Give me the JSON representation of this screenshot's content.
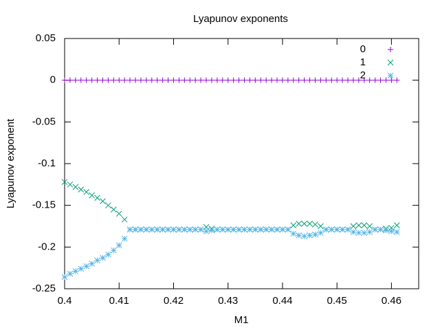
{
  "chart_data": {
    "type": "scatter",
    "title": "Lyapunov exponents",
    "x_label": "M1",
    "y_label": "Lyapunov exponent",
    "x": [
      0.4,
      0.401,
      0.402,
      0.403,
      0.404,
      0.405,
      0.406,
      0.407,
      0.408,
      0.409,
      0.41,
      0.411,
      0.412,
      0.413,
      0.414,
      0.415,
      0.416,
      0.417,
      0.418,
      0.419,
      0.42,
      0.421,
      0.422,
      0.423,
      0.424,
      0.425,
      0.426,
      0.427,
      0.428,
      0.429,
      0.43,
      0.431,
      0.432,
      0.433,
      0.434,
      0.435,
      0.436,
      0.437,
      0.438,
      0.439,
      0.44,
      0.441,
      0.442,
      0.443,
      0.444,
      0.445,
      0.446,
      0.447,
      0.448,
      0.449,
      0.45,
      0.451,
      0.452,
      0.453,
      0.454,
      0.455,
      0.456,
      0.457,
      0.458,
      0.459,
      0.46,
      0.461
    ],
    "series": [
      {
        "name": "0",
        "color": "#9400d3",
        "marker": "plus",
        "values": [
          0,
          0,
          0,
          0,
          0,
          0,
          0,
          0,
          0,
          0,
          0,
          0,
          0,
          0,
          0,
          0,
          0,
          0,
          0,
          0,
          0,
          0,
          0,
          0,
          0,
          0,
          0,
          0,
          0,
          0,
          0,
          0,
          0,
          0,
          0,
          0,
          0,
          0,
          0,
          0,
          0,
          0,
          0,
          0,
          0,
          0,
          0,
          0,
          0,
          0,
          0,
          0,
          0,
          0,
          0,
          0,
          0,
          0,
          0,
          0,
          0,
          0
        ]
      },
      {
        "name": "1",
        "color": "#009e73",
        "marker": "cross",
        "values": [
          -0.122,
          -0.125,
          -0.128,
          -0.131,
          -0.134,
          -0.138,
          -0.141,
          -0.145,
          -0.15,
          -0.155,
          -0.16,
          -0.167,
          -0.179,
          -0.179,
          -0.179,
          -0.179,
          -0.179,
          -0.179,
          -0.179,
          -0.179,
          -0.179,
          -0.179,
          -0.179,
          -0.179,
          -0.179,
          -0.179,
          -0.176,
          -0.178,
          -0.179,
          -0.179,
          -0.179,
          -0.179,
          -0.179,
          -0.179,
          -0.179,
          -0.179,
          -0.179,
          -0.179,
          -0.179,
          -0.179,
          -0.179,
          -0.179,
          -0.174,
          -0.172,
          -0.172,
          -0.172,
          -0.173,
          -0.175,
          -0.179,
          -0.179,
          -0.179,
          -0.179,
          -0.179,
          -0.175,
          -0.174,
          -0.174,
          -0.175,
          -0.179,
          -0.179,
          -0.178,
          -0.177,
          -0.174
        ]
      },
      {
        "name": "2",
        "color": "#56b4e9",
        "marker": "star",
        "values": [
          -0.236,
          -0.232,
          -0.229,
          -0.226,
          -0.223,
          -0.22,
          -0.216,
          -0.213,
          -0.209,
          -0.204,
          -0.198,
          -0.19,
          -0.179,
          -0.179,
          -0.179,
          -0.179,
          -0.179,
          -0.179,
          -0.179,
          -0.179,
          -0.179,
          -0.179,
          -0.179,
          -0.179,
          -0.179,
          -0.179,
          -0.181,
          -0.18,
          -0.179,
          -0.179,
          -0.179,
          -0.179,
          -0.179,
          -0.179,
          -0.179,
          -0.179,
          -0.179,
          -0.179,
          -0.179,
          -0.179,
          -0.179,
          -0.179,
          -0.184,
          -0.186,
          -0.187,
          -0.186,
          -0.185,
          -0.183,
          -0.179,
          -0.179,
          -0.179,
          -0.179,
          -0.179,
          -0.182,
          -0.183,
          -0.183,
          -0.182,
          -0.179,
          -0.179,
          -0.18,
          -0.181,
          -0.182
        ]
      }
    ],
    "xlim": [
      0.4,
      0.465
    ],
    "xticks": [
      0.4,
      0.41,
      0.42,
      0.43,
      0.44,
      0.45,
      0.46
    ],
    "ylim": [
      -0.25,
      0.05
    ],
    "yticks": [
      0.05,
      0,
      -0.05,
      -0.1,
      -0.15,
      -0.2,
      -0.25
    ],
    "grid": false,
    "legend": "top-right"
  }
}
